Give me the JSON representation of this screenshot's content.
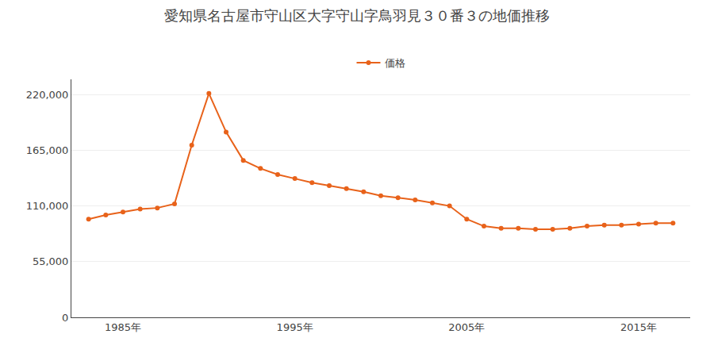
{
  "chart_data": {
    "type": "line",
    "title": "愛知県名古屋市守山区大字守山字鳥羽見３０番３の地価推移",
    "x": [
      1983,
      1984,
      1985,
      1986,
      1987,
      1988,
      1989,
      1990,
      1991,
      1992,
      1993,
      1994,
      1995,
      1996,
      1997,
      1998,
      1999,
      2000,
      2001,
      2002,
      2003,
      2004,
      2005,
      2006,
      2007,
      2008,
      2009,
      2010,
      2011,
      2012,
      2013,
      2014,
      2015,
      2016,
      2017
    ],
    "series": [
      {
        "name": "価格",
        "color": "#e8621a",
        "marker": "circle",
        "values": [
          97000,
          101000,
          104000,
          107000,
          108000,
          112000,
          170000,
          221000,
          183000,
          155000,
          147000,
          141000,
          137000,
          133000,
          130000,
          127000,
          124000,
          120000,
          118000,
          116000,
          113000,
          110000,
          97000,
          90000,
          88000,
          88000,
          87000,
          87000,
          88000,
          90000,
          91000,
          91000,
          92000,
          93000,
          93000
        ]
      }
    ],
    "xlim": [
      1982,
      2018
    ],
    "xticks": [
      {
        "value": 1985,
        "label": "1985年"
      },
      {
        "value": 1995,
        "label": "1995年"
      },
      {
        "value": 2005,
        "label": "2005年"
      },
      {
        "value": 2015,
        "label": "2015年"
      }
    ],
    "ylim": [
      0,
      235000
    ],
    "yticks": [
      0,
      {
        "value": 55000,
        "label": "55,000"
      },
      {
        "value": 110000,
        "label": "110,000"
      },
      {
        "value": 165000,
        "label": "165,000"
      },
      {
        "value": 220000,
        "label": "220,000"
      }
    ],
    "grid": true,
    "legend": "top"
  }
}
